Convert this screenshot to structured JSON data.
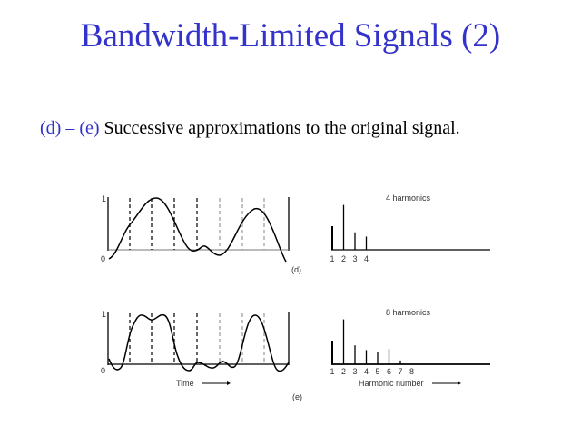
{
  "title": "Bandwidth-Limited Signals (2)",
  "subtitle": {
    "label": "(d) – (e)",
    "text": " Successive approximations to the original signal."
  },
  "figure": {
    "panel_d": {
      "y_ticks": [
        "0",
        "1"
      ],
      "caption": "(d)",
      "spectrum_title": "4 harmonics",
      "harmonic_labels": [
        "1",
        "2",
        "3",
        "4"
      ],
      "amplitudes": [
        0.5,
        0.95,
        0.37,
        0.28
      ]
    },
    "panel_e": {
      "y_ticks": [
        "0",
        "1"
      ],
      "caption": "(e)",
      "spectrum_title": "8 harmonics",
      "harmonic_labels": [
        "1",
        "2",
        "3",
        "4",
        "5",
        "6",
        "7",
        "8"
      ],
      "amplitudes": [
        0.5,
        0.95,
        0.4,
        0.3,
        0.26,
        0.32,
        0.08,
        0
      ],
      "x_label_time": "Time",
      "x_label_harmonic": "Harmonic number"
    }
  }
}
